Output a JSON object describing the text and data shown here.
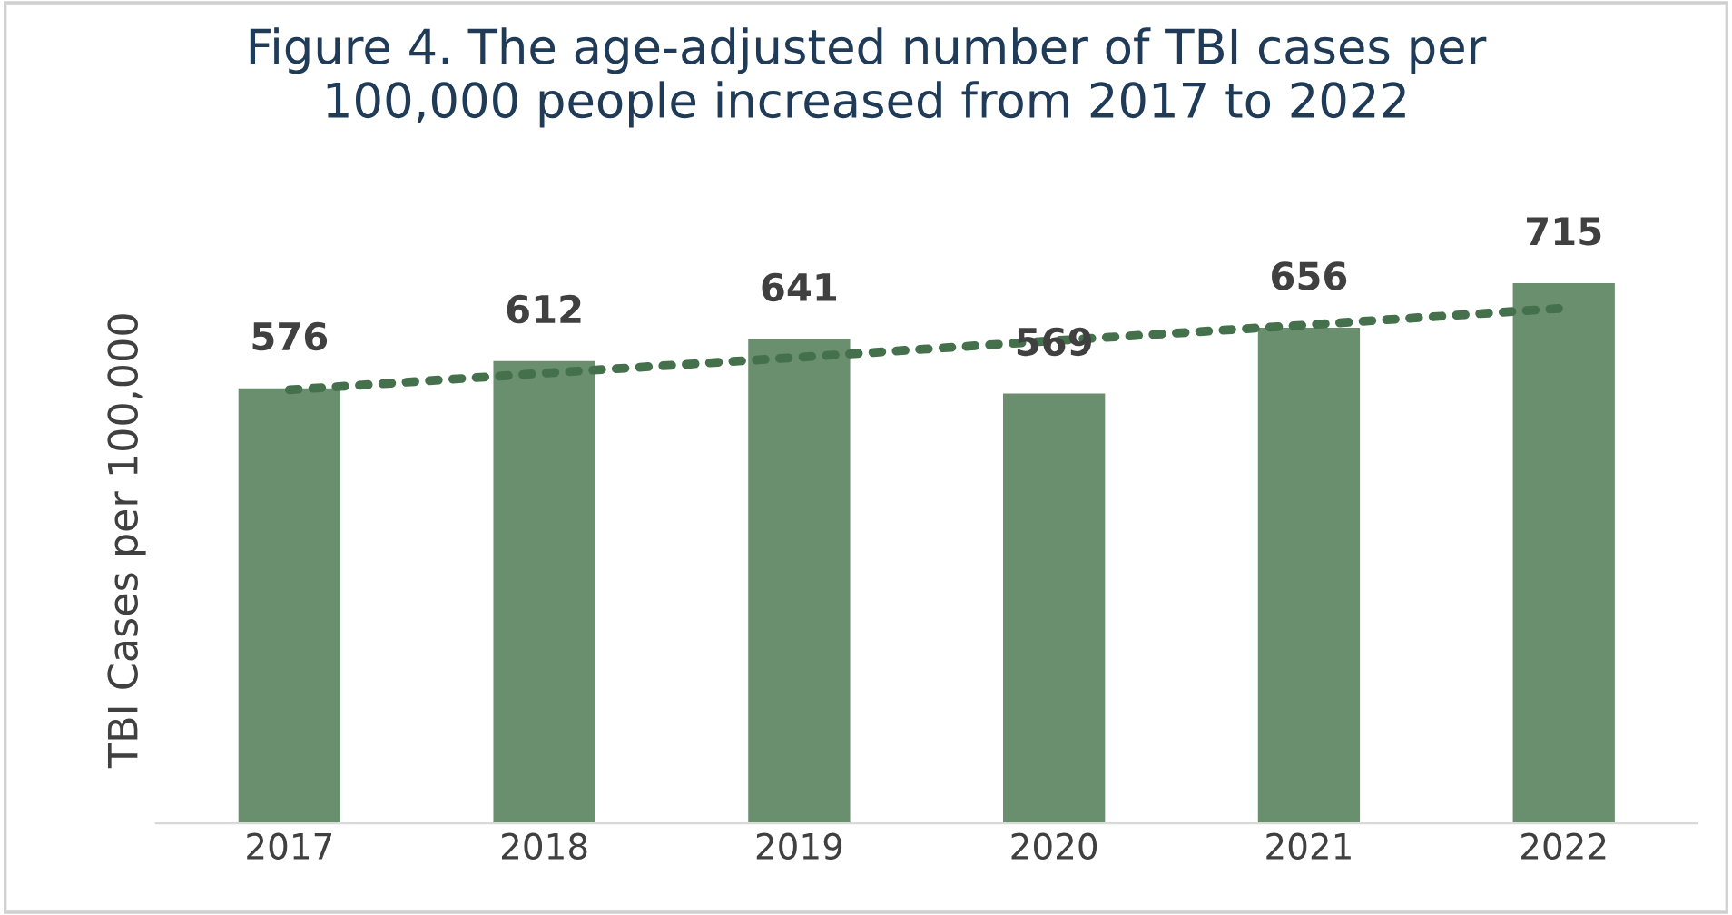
{
  "chart_data": {
    "type": "bar",
    "title": "Figure 4. The age-adjusted number of TBI cases per\n100,000 people increased from 2017 to 2022",
    "ylabel": "TBI Cases per 100,000",
    "categories": [
      "2017",
      "2018",
      "2019",
      "2020",
      "2021",
      "2022"
    ],
    "series": [
      {
        "color": "#6a8f6f",
        "values": [
          576,
          612,
          641,
          569,
          656,
          715
        ],
        "data_labels": true
      },
      {
        "type": "line",
        "color": "#44704c",
        "line_style": "dotted",
        "marker": "none",
        "values": [
          574,
          596,
          617,
          639,
          660,
          682
        ]
      }
    ],
    "grid": false,
    "legend": false,
    "tick_labels": "x"
  }
}
